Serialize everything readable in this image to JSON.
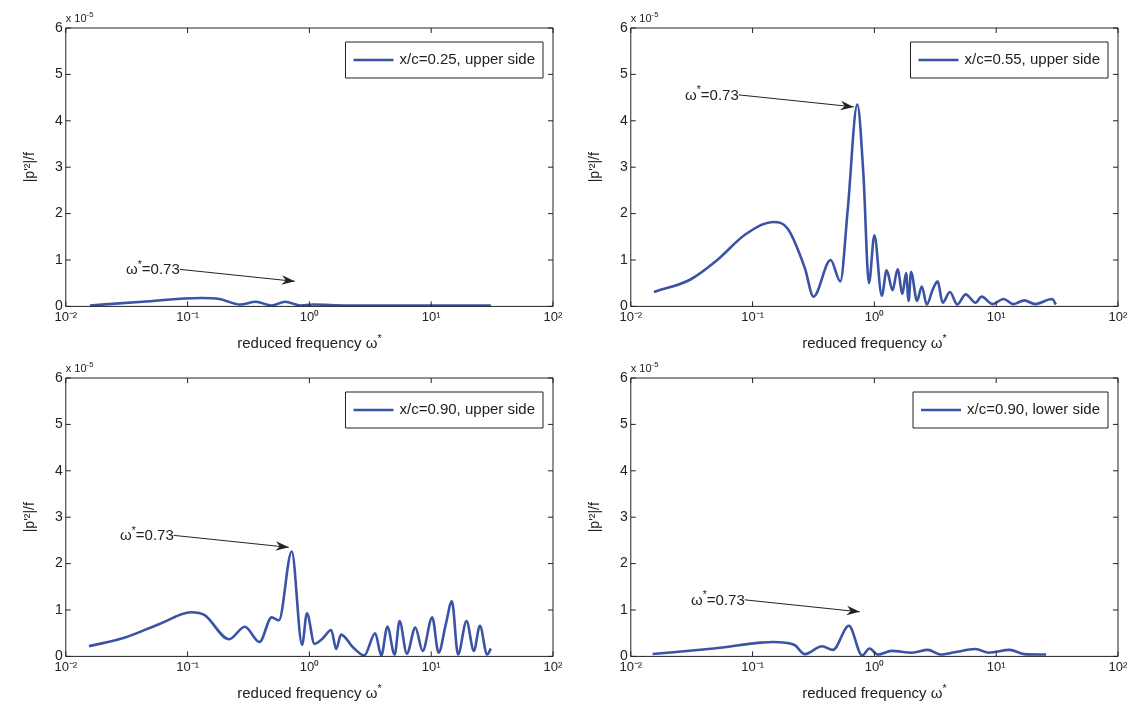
{
  "chart_data": [
    {
      "type": "line",
      "xlabel": "reduced frequency ω$^{*}$",
      "ylabel": "|p'²|/f",
      "log": "x",
      "legend": "top right",
      "marker": "none",
      "line_style": "solid",
      "xlim": [
        0.01,
        100
      ],
      "xticks": [
        {
          "value": 0.01,
          "label": "10⁻²"
        },
        {
          "value": 0.1,
          "label": "10⁻¹"
        },
        {
          "value": 1,
          "label": "10⁰"
        },
        {
          "value": 10,
          "label": "10¹"
        },
        {
          "value": 100,
          "label": "10²"
        }
      ],
      "ylim": [
        0,
        6
      ],
      "yticks": [
        0,
        1,
        2,
        3,
        4,
        5,
        6
      ],
      "annotations": [
        "x 10$^{-5}$",
        "ω$^{*}$=0.73"
      ],
      "series": [
        {
          "name": "x/c=0.25, upper side",
          "color": "#3a53a4",
          "x": [
            0.0158,
            0.0427,
            0.129,
            0.182,
            0.269,
            0.363,
            0.49,
            0.631,
            0.851,
            1.07,
            2.04,
            7.76,
            30.9
          ],
          "values": [
            0.02,
            0.1,
            0.18,
            0.16,
            0.04,
            0.1,
            0.02,
            0.1,
            0.02,
            0.04,
            0.02,
            0.02,
            0.02
          ]
        }
      ]
    },
    {
      "type": "line",
      "xlabel": "reduced frequency ω$^{*}$",
      "ylabel": "|p'²|/f",
      "log": "x",
      "legend": "top right",
      "marker": "none",
      "line_style": "solid",
      "xlim": [
        0.01,
        100
      ],
      "xticks": [
        {
          "value": 0.01,
          "label": "10⁻²"
        },
        {
          "value": 0.1,
          "label": "10⁻¹"
        },
        {
          "value": 1,
          "label": "10⁰"
        },
        {
          "value": 10,
          "label": "10¹"
        },
        {
          "value": 100,
          "label": "10²"
        }
      ],
      "ylim": [
        0,
        6
      ],
      "yticks": [
        0,
        1,
        2,
        3,
        4,
        5,
        6
      ],
      "annotations": [
        "x 10$^{-5}$",
        {
          "text": "ω$^{*}$=0.73",
          "x": 0.73,
          "y": 4.3
        }
      ],
      "series": [
        {
          "name": "x/c=0.55, upper side",
          "color": "#3a53a4",
          "x": [
            0.0155,
            0.0309,
            0.0513,
            0.0871,
            0.148,
            0.195,
            0.269,
            0.316,
            0.437,
            0.525,
            0.603,
            0.724,
            0.813,
            0.902,
            1,
            1.15,
            1.26,
            1.41,
            1.55,
            1.7,
            1.82,
            1.91,
            2.0,
            2.24,
            2.45,
            2.69,
            3.02,
            3.31,
            3.63,
            4.17,
            4.79,
            5.62,
            6.76,
            7.59,
            9.33,
            11.5,
            13.8,
            17.0,
            20.9,
            28.8,
            30.9
          ],
          "values": [
            0.31,
            0.58,
            1.0,
            1.55,
            1.82,
            1.67,
            0.82,
            0.21,
            1.0,
            0.54,
            2.06,
            4.35,
            2.83,
            0.5,
            1.53,
            0.23,
            0.78,
            0.35,
            0.8,
            0.27,
            0.72,
            0.12,
            0.74,
            0.12,
            0.43,
            0.04,
            0.37,
            0.54,
            0.08,
            0.31,
            0.04,
            0.26,
            0.08,
            0.21,
            0.05,
            0.16,
            0.05,
            0.13,
            0.05,
            0.16,
            0.04
          ]
        }
      ]
    },
    {
      "type": "line",
      "xlabel": "reduced frequency ω$^{*}$",
      "ylabel": "|p'²|/f",
      "log": "x",
      "legend": "top right",
      "marker": "none",
      "line_style": "solid",
      "xlim": [
        0.01,
        100
      ],
      "xticks": [
        {
          "value": 0.01,
          "label": "10⁻²"
        },
        {
          "value": 0.1,
          "label": "10⁻¹"
        },
        {
          "value": 1,
          "label": "10⁰"
        },
        {
          "value": 10,
          "label": "10¹"
        },
        {
          "value": 100,
          "label": "10²"
        }
      ],
      "ylim": [
        0,
        6
      ],
      "yticks": [
        0,
        1,
        2,
        3,
        4,
        5,
        6
      ],
      "annotations": [
        "x 10$^{-5}$",
        {
          "text": "ω$^{*}$=0.73",
          "x": 0.73,
          "y": 2.35
        }
      ],
      "series": [
        {
          "name": "x/c=0.90, upper side",
          "color": "#3a53a4",
          "x": [
            0.0155,
            0.0302,
            0.0589,
            0.107,
            0.138,
            0.219,
            0.295,
            0.389,
            0.49,
            0.562,
            0.716,
            0.871,
            0.955,
            1.1,
            1.29,
            1.51,
            1.66,
            1.82,
            2.29,
            2.82,
            3.47,
            3.89,
            4.37,
            5.01,
            5.5,
            6.31,
            7.41,
            8.51,
            10.2,
            11.5,
            13.2,
            14.8,
            16.6,
            19.5,
            22.4,
            25.1,
            28.8,
            30.9
          ],
          "values": [
            0.22,
            0.4,
            0.7,
            0.95,
            0.89,
            0.37,
            0.64,
            0.31,
            0.84,
            0.78,
            2.26,
            0.25,
            0.93,
            0.27,
            0.39,
            0.57,
            0.16,
            0.47,
            0.19,
            0.02,
            0.5,
            0.02,
            0.64,
            0.04,
            0.76,
            0.06,
            0.62,
            0.12,
            0.84,
            0.08,
            0.7,
            1.19,
            0.04,
            0.76,
            0.12,
            0.66,
            0.04,
            0.17
          ]
        }
      ]
    },
    {
      "type": "line",
      "xlabel": "reduced frequency ω$^{*}$",
      "ylabel": "|p'²|/f",
      "log": "x",
      "legend": "top right",
      "marker": "none",
      "line_style": "solid",
      "xlim": [
        0.01,
        100
      ],
      "xticks": [
        {
          "value": 0.01,
          "label": "10⁻²"
        },
        {
          "value": 0.1,
          "label": "10⁻¹"
        },
        {
          "value": 1,
          "label": "10⁰"
        },
        {
          "value": 10,
          "label": "10¹"
        },
        {
          "value": 100,
          "label": "10²"
        }
      ],
      "ylim": [
        0,
        6
      ],
      "yticks": [
        0,
        1,
        2,
        3,
        4,
        5,
        6
      ],
      "annotations": [
        "x 10$^{-5}$",
        "ω$^{*}$=0.73"
      ],
      "series": [
        {
          "name": "x/c=0.90, lower side",
          "color": "#3a53a4",
          "x": [
            0.0151,
            0.0479,
            0.148,
            0.219,
            0.269,
            0.372,
            0.457,
            0.617,
            0.794,
            0.912,
            1.07,
            1.38,
            2.04,
            2.75,
            3.47,
            4.57,
            6.76,
            8.71,
            12.9,
            17.0,
            25.7
          ],
          "values": [
            0.05,
            0.17,
            0.31,
            0.25,
            0.05,
            0.22,
            0.14,
            0.66,
            0.02,
            0.17,
            0.04,
            0.12,
            0.08,
            0.14,
            0.04,
            0.09,
            0.16,
            0.08,
            0.14,
            0.05,
            0.04
          ]
        }
      ]
    }
  ]
}
